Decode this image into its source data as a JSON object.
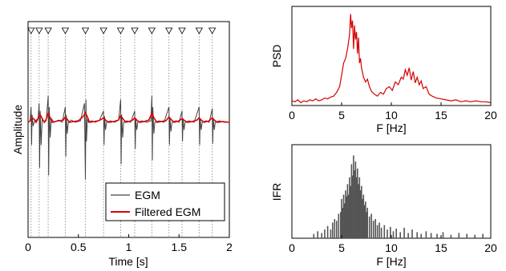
{
  "colors": {
    "egm": "#444444",
    "filtered": "#e00000",
    "psd": "#d50000",
    "ifr": "#555555",
    "marker_line": "#999999"
  },
  "chart_data": [
    {
      "id": "egm_panel",
      "type": "line",
      "xlabel": "Time [s]",
      "ylabel": "Amplitude",
      "xlim": [
        0,
        2
      ],
      "xticks": [
        0,
        0.5,
        1,
        1.5,
        2
      ],
      "xtick_labels": [
        "0",
        "0.5",
        "1",
        "1.5",
        "2"
      ],
      "markers": {
        "shape": "triangle-down",
        "times": [
          0.03,
          0.11,
          0.2,
          0.37,
          0.57,
          0.75,
          0.92,
          1.06,
          1.23,
          1.4,
          1.53,
          1.7,
          1.83
        ]
      },
      "legend": {
        "placement": "bottom-right",
        "entries": [
          "EGM",
          "Filtered EGM"
        ]
      },
      "series": [
        {
          "name": "EGM",
          "x": [
            0.0,
            0.02,
            0.03,
            0.035,
            0.04,
            0.05,
            0.06,
            0.08,
            0.1,
            0.11,
            0.115,
            0.12,
            0.13,
            0.14,
            0.16,
            0.18,
            0.2,
            0.205,
            0.21,
            0.22,
            0.23,
            0.26,
            0.3,
            0.34,
            0.37,
            0.375,
            0.38,
            0.39,
            0.4,
            0.43,
            0.47,
            0.52,
            0.56,
            0.57,
            0.575,
            0.58,
            0.59,
            0.6,
            0.63,
            0.67,
            0.71,
            0.75,
            0.755,
            0.76,
            0.77,
            0.78,
            0.82,
            0.86,
            0.9,
            0.92,
            0.925,
            0.93,
            0.94,
            0.95,
            0.98,
            1.02,
            1.06,
            1.065,
            1.07,
            1.08,
            1.09,
            1.13,
            1.18,
            1.22,
            1.23,
            1.235,
            1.24,
            1.25,
            1.26,
            1.3,
            1.35,
            1.4,
            1.405,
            1.41,
            1.42,
            1.43,
            1.47,
            1.5,
            1.53,
            1.535,
            1.54,
            1.55,
            1.56,
            1.6,
            1.65,
            1.7,
            1.705,
            1.71,
            1.72,
            1.73,
            1.77,
            1.8,
            1.83,
            1.835,
            1.84,
            1.85,
            1.86,
            1.9,
            1.95,
            2.0
          ],
          "y": [
            0.0,
            0.02,
            0.2,
            -0.3,
            0.1,
            -0.05,
            0.0,
            0.03,
            0.05,
            0.25,
            -0.6,
            0.15,
            -0.3,
            0.05,
            0.0,
            0.02,
            0.35,
            -0.7,
            0.2,
            -0.2,
            0.05,
            0.0,
            0.03,
            0.0,
            0.2,
            -0.45,
            0.1,
            -0.15,
            0.0,
            0.03,
            0.0,
            0.02,
            0.25,
            -0.75,
            0.3,
            -0.25,
            0.05,
            0.0,
            0.02,
            0.0,
            0.03,
            0.15,
            -0.3,
            0.08,
            -0.1,
            0.0,
            0.02,
            0.0,
            0.03,
            0.3,
            -0.55,
            0.1,
            -0.2,
            0.0,
            0.02,
            0.0,
            0.15,
            -0.35,
            0.05,
            -0.1,
            0.0,
            0.02,
            0.0,
            0.02,
            0.35,
            -0.5,
            0.2,
            -0.15,
            0.0,
            0.02,
            0.0,
            0.2,
            -0.3,
            0.05,
            -0.12,
            0.0,
            0.02,
            0.0,
            0.15,
            -0.25,
            0.05,
            -0.1,
            0.0,
            0.02,
            0.0,
            0.2,
            -0.3,
            0.05,
            -0.1,
            0.0,
            0.02,
            0.0,
            0.18,
            -0.28,
            0.05,
            -0.1,
            0.0,
            0.02,
            0.0,
            0.0
          ]
        },
        {
          "name": "Filtered EGM",
          "x": [
            0.0,
            0.02,
            0.04,
            0.06,
            0.08,
            0.1,
            0.12,
            0.14,
            0.16,
            0.18,
            0.2,
            0.22,
            0.24,
            0.3,
            0.35,
            0.37,
            0.39,
            0.41,
            0.45,
            0.5,
            0.55,
            0.57,
            0.59,
            0.61,
            0.65,
            0.7,
            0.73,
            0.75,
            0.77,
            0.8,
            0.85,
            0.9,
            0.92,
            0.94,
            0.97,
            1.0,
            1.04,
            1.06,
            1.08,
            1.11,
            1.15,
            1.2,
            1.23,
            1.25,
            1.28,
            1.32,
            1.37,
            1.4,
            1.42,
            1.45,
            1.5,
            1.53,
            1.55,
            1.58,
            1.63,
            1.68,
            1.7,
            1.72,
            1.75,
            1.8,
            1.83,
            1.85,
            1.88,
            1.93,
            2.0
          ],
          "y": [
            0.0,
            0.02,
            0.06,
            0.04,
            0.0,
            0.05,
            0.1,
            0.05,
            0.0,
            0.04,
            0.12,
            0.06,
            0.0,
            0.02,
            0.03,
            0.07,
            0.04,
            0.0,
            0.01,
            0.02,
            0.08,
            0.13,
            0.07,
            0.0,
            0.01,
            0.02,
            0.04,
            0.06,
            0.03,
            0.0,
            0.01,
            0.03,
            0.09,
            0.05,
            0.0,
            0.01,
            0.03,
            0.06,
            0.03,
            0.0,
            0.01,
            0.03,
            0.12,
            0.06,
            0.0,
            0.01,
            0.02,
            0.07,
            0.04,
            0.0,
            0.02,
            0.05,
            0.03,
            0.0,
            0.01,
            0.03,
            0.06,
            0.03,
            0.0,
            0.02,
            0.06,
            0.03,
            0.0,
            0.01,
            0.0
          ]
        }
      ]
    },
    {
      "id": "psd_panel",
      "type": "line",
      "xlabel": "F [Hz]",
      "ylabel": "PSD",
      "xlim": [
        0,
        20
      ],
      "ylim": [
        0,
        1
      ],
      "xticks": [
        0,
        5,
        10,
        15,
        20
      ],
      "xtick_labels": [
        "0",
        "5",
        "10",
        "15",
        "20"
      ],
      "series": [
        {
          "name": "PSD",
          "x": [
            0.0,
            0.3,
            0.6,
            0.9,
            1.2,
            1.5,
            1.8,
            2.1,
            2.4,
            2.7,
            3.0,
            3.3,
            3.6,
            3.9,
            4.2,
            4.5,
            4.8,
            5.0,
            5.2,
            5.4,
            5.6,
            5.8,
            5.9,
            6.0,
            6.1,
            6.2,
            6.3,
            6.4,
            6.5,
            6.6,
            6.7,
            6.8,
            6.9,
            7.0,
            7.2,
            7.4,
            7.6,
            7.8,
            8.0,
            8.3,
            8.6,
            8.9,
            9.2,
            9.5,
            9.8,
            10.1,
            10.4,
            10.7,
            11.0,
            11.2,
            11.4,
            11.6,
            11.8,
            12.0,
            12.2,
            12.4,
            12.6,
            12.8,
            13.0,
            13.2,
            13.5,
            13.8,
            14.1,
            14.5,
            15.0,
            15.5,
            16.0,
            16.5,
            17.0,
            17.5,
            18.0,
            18.5,
            19.0,
            19.5,
            20.0
          ],
          "y": [
            0.05,
            0.04,
            0.06,
            0.03,
            0.05,
            0.04,
            0.06,
            0.05,
            0.07,
            0.05,
            0.06,
            0.08,
            0.07,
            0.09,
            0.1,
            0.14,
            0.2,
            0.32,
            0.45,
            0.5,
            0.6,
            0.75,
            0.97,
            0.82,
            0.9,
            0.6,
            0.85,
            0.7,
            0.78,
            0.55,
            0.72,
            0.45,
            0.5,
            0.4,
            0.3,
            0.25,
            0.28,
            0.2,
            0.15,
            0.12,
            0.1,
            0.14,
            0.12,
            0.18,
            0.2,
            0.16,
            0.25,
            0.22,
            0.3,
            0.28,
            0.38,
            0.32,
            0.4,
            0.27,
            0.36,
            0.24,
            0.3,
            0.22,
            0.26,
            0.18,
            0.2,
            0.12,
            0.1,
            0.08,
            0.07,
            0.06,
            0.05,
            0.06,
            0.04,
            0.05,
            0.04,
            0.05,
            0.04,
            0.04,
            0.03
          ]
        }
      ]
    },
    {
      "id": "ifr_panel",
      "type": "bar",
      "xlabel": "F [Hz]",
      "ylabel": "IFR",
      "xlim": [
        0,
        20
      ],
      "ylim": [
        0,
        1
      ],
      "xticks": [
        0,
        5,
        10,
        15,
        20
      ],
      "xtick_labels": [
        "0",
        "5",
        "10",
        "15",
        "20"
      ],
      "series": [
        {
          "name": "IFR",
          "x": [
            2.2,
            2.6,
            3.0,
            3.3,
            3.6,
            3.9,
            4.1,
            4.3,
            4.5,
            4.7,
            4.9,
            5.0,
            5.1,
            5.2,
            5.3,
            5.4,
            5.5,
            5.6,
            5.7,
            5.8,
            5.9,
            6.0,
            6.1,
            6.2,
            6.3,
            6.4,
            6.5,
            6.6,
            6.7,
            6.8,
            6.9,
            7.0,
            7.1,
            7.2,
            7.3,
            7.4,
            7.5,
            7.6,
            7.8,
            8.0,
            8.2,
            8.4,
            8.6,
            8.8,
            9.0,
            9.3,
            9.6,
            9.9,
            10.2,
            10.5,
            10.9,
            11.3,
            11.7,
            12.1,
            12.6,
            13.0,
            13.5,
            14.0,
            14.6,
            15.2,
            16.0,
            16.8,
            17.6,
            18.4,
            19.2
          ],
          "y": [
            0.05,
            0.08,
            0.06,
            0.1,
            0.14,
            0.1,
            0.18,
            0.22,
            0.2,
            0.28,
            0.3,
            0.45,
            0.35,
            0.5,
            0.4,
            0.55,
            0.48,
            0.62,
            0.5,
            0.7,
            0.6,
            0.85,
            0.72,
            0.95,
            0.78,
            0.88,
            0.7,
            0.8,
            0.62,
            0.7,
            0.55,
            0.6,
            0.45,
            0.5,
            0.38,
            0.42,
            0.3,
            0.35,
            0.25,
            0.28,
            0.2,
            0.22,
            0.15,
            0.18,
            0.12,
            0.15,
            0.1,
            0.13,
            0.08,
            0.11,
            0.07,
            0.12,
            0.06,
            0.1,
            0.07,
            0.05,
            0.08,
            0.06,
            0.05,
            0.07,
            0.04,
            0.06,
            0.05,
            0.04,
            0.05
          ]
        }
      ]
    }
  ]
}
